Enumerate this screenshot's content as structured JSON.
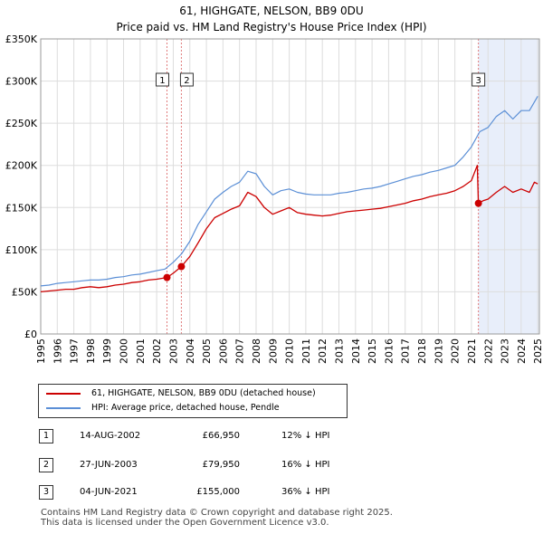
{
  "chart_data": {
    "type": "line",
    "title": "61, HIGHGATE, NELSON, BB9 0DU",
    "subtitle": "Price paid vs. HM Land Registry's House Price Index (HPI)",
    "xlabel": "",
    "ylabel": "",
    "xlim": [
      1995,
      2025.1
    ],
    "ylim": [
      0,
      350000
    ],
    "y_ticks": [
      0,
      50000,
      100000,
      150000,
      200000,
      250000,
      300000,
      350000
    ],
    "y_tick_labels": [
      "£0",
      "£50K",
      "£100K",
      "£150K",
      "£200K",
      "£250K",
      "£300K",
      "£350K"
    ],
    "x_ticks": [
      1995,
      1996,
      1997,
      1998,
      1999,
      2000,
      2001,
      2002,
      2003,
      2004,
      2005,
      2006,
      2007,
      2008,
      2009,
      2010,
      2011,
      2012,
      2013,
      2014,
      2015,
      2016,
      2017,
      2018,
      2019,
      2020,
      2021,
      2022,
      2023,
      2024,
      2025
    ],
    "grid": true,
    "shaded_region": [
      2021.42,
      2025.1
    ],
    "legend_position": "below",
    "series": [
      {
        "name": "61, HIGHGATE, NELSON, BB9 0DU (detached house)",
        "color": "#cc0000",
        "x": [
          1995.0,
          1995.5,
          1996.0,
          1996.5,
          1997.0,
          1997.5,
          1998.0,
          1998.5,
          1999.0,
          1999.5,
          2000.0,
          2000.5,
          2001.0,
          2001.5,
          2002.0,
          2002.62,
          2003.0,
          2003.49,
          2004.0,
          2004.5,
          2005.0,
          2005.5,
          2006.0,
          2006.5,
          2007.0,
          2007.5,
          2008.0,
          2008.5,
          2009.0,
          2009.5,
          2010.0,
          2010.5,
          2011.0,
          2011.5,
          2012.0,
          2012.5,
          2013.0,
          2013.5,
          2014.0,
          2014.5,
          2015.0,
          2015.5,
          2016.0,
          2016.5,
          2017.0,
          2017.5,
          2018.0,
          2018.5,
          2019.0,
          2019.5,
          2020.0,
          2020.5,
          2021.0,
          2021.35,
          2021.42,
          2021.7,
          2022.0,
          2022.5,
          2023.0,
          2023.5,
          2024.0,
          2024.5,
          2024.8,
          2025.0
        ],
        "values": [
          50000,
          51000,
          52000,
          53000,
          53000,
          55000,
          56000,
          55000,
          56000,
          58000,
          59000,
          61000,
          62000,
          64000,
          65000,
          66950,
          72000,
          79950,
          92000,
          108000,
          125000,
          138000,
          143000,
          148000,
          152000,
          168000,
          163000,
          150000,
          142000,
          146000,
          150000,
          144000,
          142000,
          141000,
          140000,
          141000,
          143000,
          145000,
          146000,
          147000,
          148000,
          149000,
          151000,
          153000,
          155000,
          158000,
          160000,
          163000,
          165000,
          167000,
          170000,
          175000,
          182000,
          200000,
          155000,
          158000,
          160000,
          168000,
          175000,
          168000,
          172000,
          168000,
          180000,
          178000
        ],
        "points": [
          {
            "label": "1",
            "x": 2002.62,
            "y": 66950
          },
          {
            "label": "2",
            "x": 2003.49,
            "y": 79950
          },
          {
            "label": "3",
            "x": 2021.42,
            "y": 155000
          }
        ]
      },
      {
        "name": "HPI: Average price, detached house, Pendle",
        "color": "#5b8fd6",
        "x": [
          1995.0,
          1995.5,
          1996.0,
          1996.5,
          1997.0,
          1997.5,
          1998.0,
          1998.5,
          1999.0,
          1999.5,
          2000.0,
          2000.5,
          2001.0,
          2001.5,
          2002.0,
          2002.5,
          2003.0,
          2003.5,
          2004.0,
          2004.5,
          2005.0,
          2005.5,
          2006.0,
          2006.5,
          2007.0,
          2007.5,
          2008.0,
          2008.5,
          2009.0,
          2009.5,
          2010.0,
          2010.5,
          2011.0,
          2011.5,
          2012.0,
          2012.5,
          2013.0,
          2013.5,
          2014.0,
          2014.5,
          2015.0,
          2015.5,
          2016.0,
          2016.5,
          2017.0,
          2017.5,
          2018.0,
          2018.5,
          2019.0,
          2019.5,
          2020.0,
          2020.5,
          2021.0,
          2021.5,
          2022.0,
          2022.5,
          2023.0,
          2023.5,
          2024.0,
          2024.5,
          2025.0
        ],
        "values": [
          57000,
          58000,
          60000,
          61000,
          62000,
          63000,
          64000,
          64000,
          65000,
          67000,
          68000,
          70000,
          71000,
          73000,
          75000,
          77000,
          85000,
          95000,
          110000,
          130000,
          145000,
          160000,
          168000,
          175000,
          180000,
          193000,
          190000,
          175000,
          165000,
          170000,
          172000,
          168000,
          166000,
          165000,
          165000,
          165000,
          167000,
          168000,
          170000,
          172000,
          173000,
          175000,
          178000,
          181000,
          184000,
          187000,
          189000,
          192000,
          194000,
          197000,
          200000,
          210000,
          222000,
          240000,
          245000,
          258000,
          265000,
          255000,
          265000,
          265000,
          282000
        ]
      }
    ]
  },
  "legend": {
    "items": [
      {
        "label": "61, HIGHGATE, NELSON, BB9 0DU (detached house)",
        "color": "#cc0000"
      },
      {
        "label": "HPI: Average price, detached house, Pendle",
        "color": "#5b8fd6"
      }
    ]
  },
  "transactions": [
    {
      "num": "1",
      "date": "14-AUG-2002",
      "price": "£66,950",
      "hpi": "12% ↓ HPI"
    },
    {
      "num": "2",
      "date": "27-JUN-2003",
      "price": "£79,950",
      "hpi": "16% ↓ HPI"
    },
    {
      "num": "3",
      "date": "04-JUN-2021",
      "price": "£155,000",
      "hpi": "36% ↓ HPI"
    }
  ],
  "footer": {
    "line1": "Contains HM Land Registry data © Crown copyright and database right 2025.",
    "line2": "This data is licensed under the Open Government Licence v3.0."
  }
}
